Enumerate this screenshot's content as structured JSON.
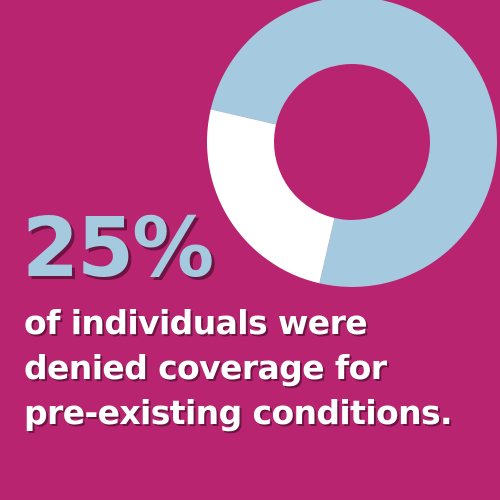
{
  "chart_data": {
    "type": "pie",
    "style": "donut",
    "slices": [
      {
        "value": 25
      },
      {
        "value": 75
      }
    ],
    "colors": {
      "background": "#b8246f",
      "highlight_slice": "#ffffff",
      "remainder_slice": "#a5c9df",
      "stat_text": "#a5c9df",
      "caption_text": "#ffffff",
      "shadow": "#6e1443"
    }
  },
  "stat": {
    "value": "25%"
  },
  "caption": {
    "lines": [
      "of individuals were",
      "denied coverage for",
      "pre-existing conditions."
    ]
  }
}
